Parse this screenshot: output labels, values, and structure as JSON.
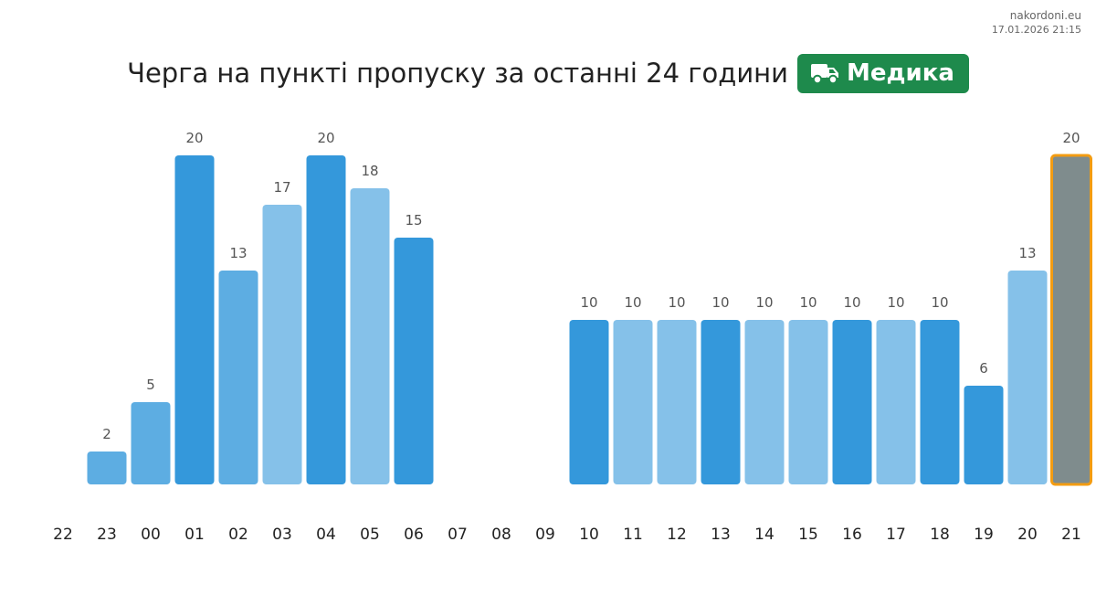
{
  "header": {
    "site": "nakordoni.eu",
    "timestamp": "17.01.2026 21:15",
    "title": "Черга на пункті пропуску за останні 24 години",
    "badge_label": "Медика",
    "badge_icon": "truck-icon",
    "badge_color": "#1e8a4c"
  },
  "chart_data": {
    "type": "bar",
    "title": "Черга на пункті пропуску за останні 24 години",
    "xlabel": "",
    "ylabel": "",
    "categories": [
      "22",
      "23",
      "00",
      "01",
      "02",
      "03",
      "04",
      "05",
      "06",
      "07",
      "08",
      "09",
      "10",
      "11",
      "12",
      "13",
      "14",
      "15",
      "16",
      "17",
      "18",
      "19",
      "20",
      "21"
    ],
    "values": [
      null,
      2,
      5,
      20,
      13,
      17,
      20,
      18,
      15,
      null,
      null,
      null,
      10,
      10,
      10,
      10,
      10,
      10,
      10,
      10,
      10,
      6,
      13,
      20
    ],
    "bar_colors": [
      null,
      "#5dade2",
      "#5dade2",
      "#3498db",
      "#5dade2",
      "#85c1e9",
      "#3498db",
      "#85c1e9",
      "#3498db",
      null,
      null,
      null,
      "#3498db",
      "#85c1e9",
      "#85c1e9",
      "#3498db",
      "#85c1e9",
      "#85c1e9",
      "#3498db",
      "#85c1e9",
      "#3498db",
      "#3498db",
      "#85c1e9",
      "#7f8c8d"
    ],
    "highlight_index": 23,
    "highlight_border_color": "#f39c12",
    "ylim": [
      0,
      20
    ],
    "grid": false,
    "axis_visible": false
  }
}
